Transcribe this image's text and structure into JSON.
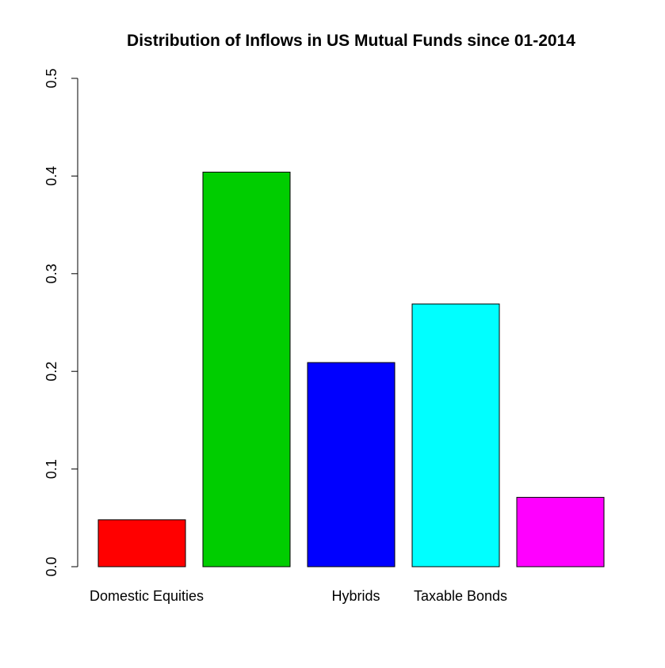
{
  "chart_data": {
    "type": "bar",
    "title": "Distribution of Inflows in US Mutual Funds since 01-2014",
    "xlabel": "",
    "ylabel": "",
    "ylim": [
      0,
      0.5
    ],
    "yticks": [
      0.0,
      0.1,
      0.2,
      0.3,
      0.4,
      0.5
    ],
    "ytick_labels": [
      "0.0",
      "0.1",
      "0.2",
      "0.3",
      "0.4",
      "0.5"
    ],
    "categories": [
      "Domestic Equities",
      "",
      "Hybrids",
      "Taxable Bonds",
      ""
    ],
    "values": [
      0.048,
      0.404,
      0.209,
      0.269,
      0.071
    ],
    "colors": [
      "#ff0000",
      "#00cd00",
      "#0000ff",
      "#00ffff",
      "#ff00ff"
    ],
    "grid": false,
    "legend": "none"
  }
}
